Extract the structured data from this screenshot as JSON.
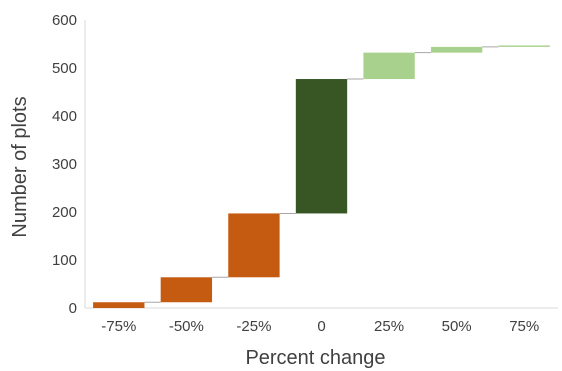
{
  "chart_data": {
    "type": "bar",
    "subtype": "waterfall",
    "title": "",
    "xlabel": "Percent change",
    "ylabel": "Number of plots",
    "ylim": [
      0,
      600
    ],
    "yticks": [
      "0",
      "100",
      "200",
      "300",
      "400",
      "500",
      "600"
    ],
    "grid": false,
    "legend": "none",
    "categories": [
      "-75%",
      "-50%",
      "-25%",
      "0",
      "25%",
      "50%",
      "75%"
    ],
    "values": [
      12,
      52,
      133,
      280,
      55,
      12,
      3
    ],
    "bases": [
      0,
      12,
      64,
      197,
      477,
      532,
      544
    ],
    "colors": [
      "#c55a11",
      "#c55a11",
      "#c55a11",
      "#375623",
      "#a9d18e",
      "#a9d18e",
      "#a9d18e"
    ],
    "connector_color": "#a6a6a6",
    "axis_color": "#d9d9d9"
  }
}
